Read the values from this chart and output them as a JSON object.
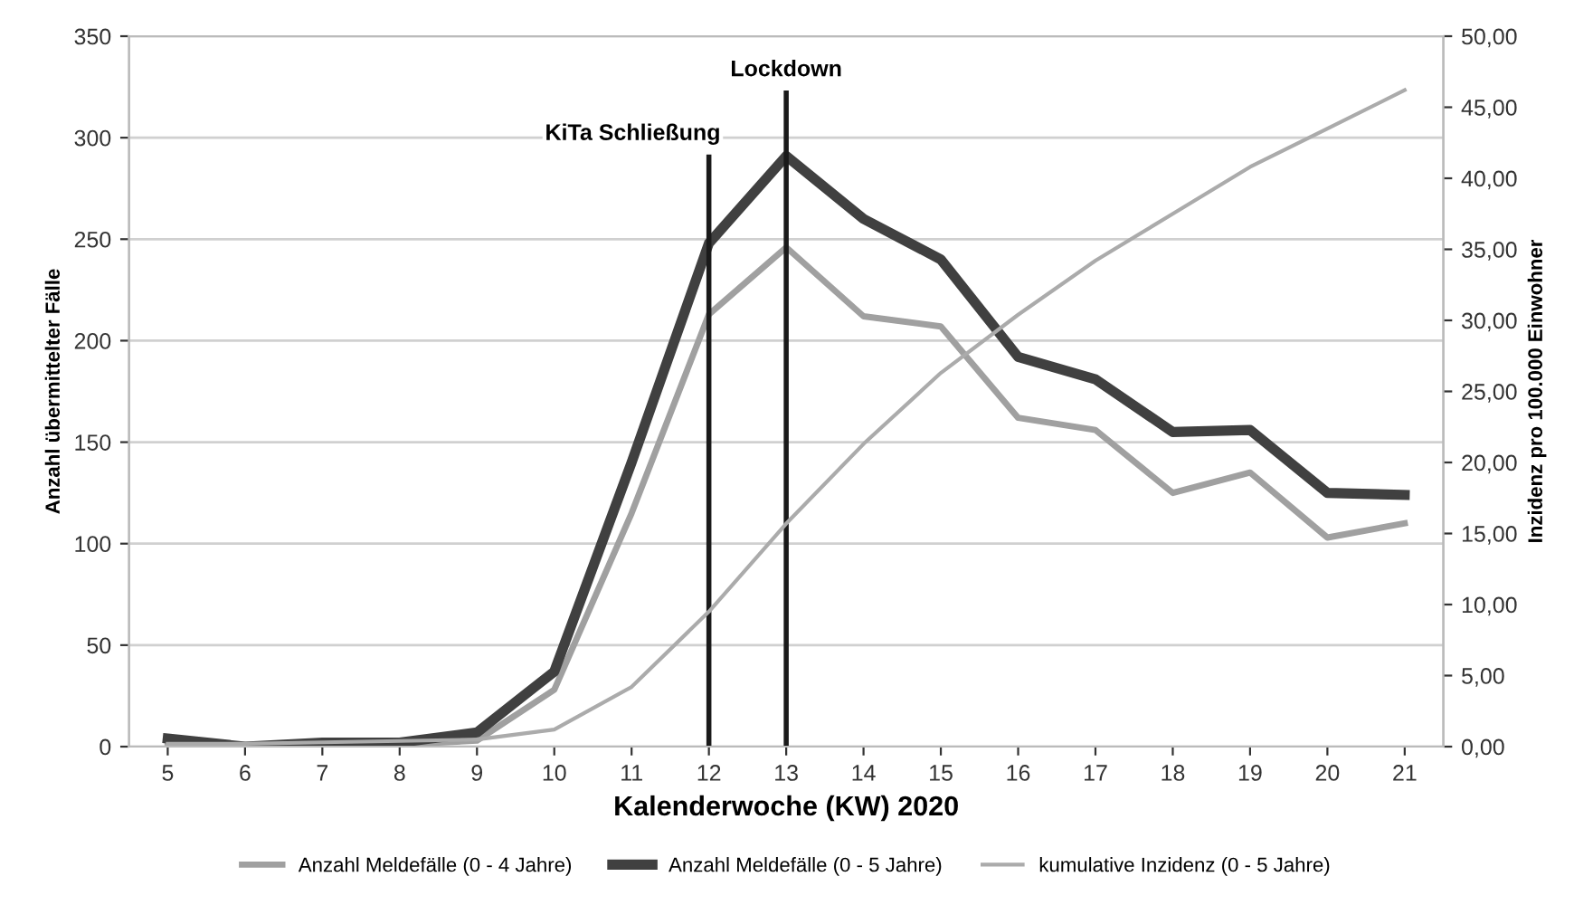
{
  "chart_data": {
    "type": "line",
    "xlabel": "Kalenderwoche (KW) 2020",
    "ylabel": "Anzahl übermittelter Fälle",
    "y2label": "Inzidenz pro 100.000 Einwohner",
    "categories": [
      "5",
      "6",
      "7",
      "8",
      "9",
      "10",
      "11",
      "12",
      "13",
      "14",
      "15",
      "16",
      "17",
      "18",
      "19",
      "20",
      "21"
    ],
    "series": [
      {
        "name": "Anzahl Meldefälle (0 - 4 Jahre)",
        "color": "#a0a0a0",
        "values": [
          2,
          0,
          1,
          1,
          3,
          28,
          115,
          213,
          246,
          212,
          207,
          162,
          156,
          125,
          135,
          103,
          110
        ]
      },
      {
        "name": "Anzahl Meldefälle (0 - 5 Jahre)",
        "color": "#404040",
        "values": [
          4,
          0,
          2,
          2,
          7,
          37,
          140,
          248,
          291,
          260,
          240,
          192,
          181,
          155,
          156,
          125,
          124
        ]
      },
      {
        "name": "kumulative Inzidenz (0 - 5 Jahre)",
        "color": "#ababab",
        "axis": "y2",
        "values": [
          0.2,
          0.2,
          0.3,
          0.4,
          0.5,
          1.2,
          4.2,
          9.5,
          15.7,
          21.3,
          26.3,
          30.4,
          34.2,
          37.5,
          40.8,
          43.5,
          46.2
        ]
      }
    ],
    "ylim": [
      0,
      350
    ],
    "yticks": [
      0,
      50,
      100,
      150,
      200,
      250,
      300,
      350
    ],
    "y2lim": [
      0,
      50
    ],
    "y2ticks": [
      {
        "value": 0,
        "label": "0,00"
      },
      {
        "value": 5,
        "label": "5,00"
      },
      {
        "value": 10,
        "label": "10,00"
      },
      {
        "value": 15,
        "label": "15,00"
      },
      {
        "value": 20,
        "label": "20,00"
      },
      {
        "value": 25,
        "label": "25,00"
      },
      {
        "value": 30,
        "label": "30,00"
      },
      {
        "value": 35,
        "label": "35,00"
      },
      {
        "value": 40,
        "label": "40,00"
      },
      {
        "value": 45,
        "label": "45,00"
      },
      {
        "value": 50,
        "label": "50,00"
      }
    ],
    "ref_lines": [
      {
        "axis": "x",
        "value": "12",
        "label": "KiTa Schließung",
        "color": "#1a1a1a"
      },
      {
        "axis": "x",
        "value": "13",
        "label": "Lockdown",
        "color": "#1a1a1a"
      }
    ],
    "grid": "y",
    "legend": "bottom",
    "marker": "none",
    "line_style": "solid"
  }
}
